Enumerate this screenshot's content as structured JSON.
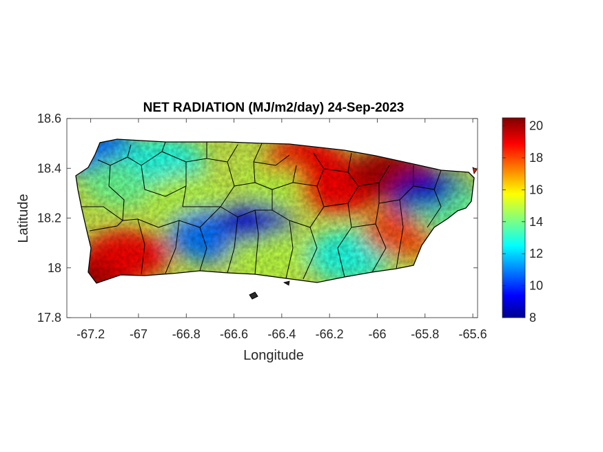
{
  "title": "NET RADIATION (MJ/m2/day) 24-Sep-2023",
  "xlabel": "Longitude",
  "ylabel": "Latitude",
  "x_ticks": [
    "-67.2",
    "-67",
    "-66.8",
    "-66.6",
    "-66.4",
    "-66.2",
    "-66",
    "-65.8",
    "-65.6"
  ],
  "y_ticks": [
    "18.6",
    "18.4",
    "18.2",
    "18",
    "17.8"
  ],
  "x_tick_values": [
    -67.2,
    -67,
    -66.8,
    -66.6,
    -66.4,
    -66.2,
    -66,
    -65.8,
    -65.6
  ],
  "y_tick_values": [
    18.6,
    18.4,
    18.2,
    18,
    17.8
  ],
  "x_range": [
    -67.3,
    -65.58
  ],
  "y_range": [
    17.8,
    18.6
  ],
  "colorbar": {
    "ticks": [
      "20",
      "18",
      "16",
      "14",
      "12",
      "10",
      "8"
    ],
    "tick_values": [
      20,
      18,
      16,
      14,
      12,
      10,
      8
    ],
    "range": [
      8,
      20.5
    ],
    "colormap": "jet"
  },
  "chart_data": {
    "type": "heatmap",
    "title": "NET RADIATION (MJ/m2/day) 24-Sep-2023",
    "xlabel": "Longitude",
    "ylabel": "Latitude",
    "xlim": [
      -67.3,
      -65.58
    ],
    "ylim": [
      17.8,
      18.6
    ],
    "clim": [
      8,
      20.5
    ],
    "colormap": "jet",
    "grid": false,
    "field_samples": [
      {
        "lon": -67.17,
        "lat": 18.47,
        "value": 11
      },
      {
        "lon": -67.05,
        "lat": 18.35,
        "value": 14
      },
      {
        "lon": -67.18,
        "lat": 17.97,
        "value": 20
      },
      {
        "lon": -67.05,
        "lat": 18.05,
        "value": 19
      },
      {
        "lon": -66.9,
        "lat": 18.42,
        "value": 13
      },
      {
        "lon": -66.8,
        "lat": 18.27,
        "value": 15
      },
      {
        "lon": -66.7,
        "lat": 18.13,
        "value": 11
      },
      {
        "lon": -66.53,
        "lat": 18.16,
        "value": 9
      },
      {
        "lon": -66.45,
        "lat": 18.05,
        "value": 15
      },
      {
        "lon": -66.4,
        "lat": 18.35,
        "value": 15
      },
      {
        "lon": -66.3,
        "lat": 18.42,
        "value": 19
      },
      {
        "lon": -66.15,
        "lat": 18.32,
        "value": 19
      },
      {
        "lon": -66.12,
        "lat": 18.05,
        "value": 13
      },
      {
        "lon": -65.95,
        "lat": 18.38,
        "value": 20
      },
      {
        "lon": -65.88,
        "lat": 18.15,
        "value": 18
      },
      {
        "lon": -65.76,
        "lat": 18.28,
        "value": 9
      },
      {
        "lon": -65.68,
        "lat": 18.22,
        "value": 14
      }
    ]
  }
}
